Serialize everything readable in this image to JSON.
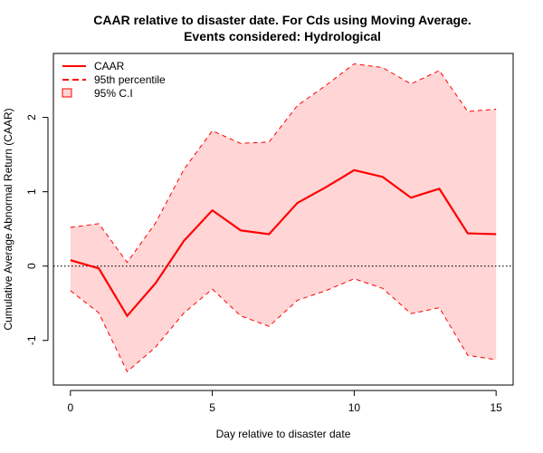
{
  "chart_data": {
    "type": "line",
    "title": "CAAR relative to disaster date. For Cds using Moving Average.",
    "subtitle": "Events considered: Hydrological",
    "xlabel": "Day relative to disaster date",
    "ylabel": "Cumulative Average Abnormal Return (CAAR)",
    "xlim": [
      -0.6,
      15.6
    ],
    "ylim": [
      -1.6,
      2.86
    ],
    "x_ticks": [
      0,
      5,
      10,
      15
    ],
    "x_tick_labels": [
      "0",
      "5",
      "10",
      "15"
    ],
    "y_ticks": [
      -1,
      0,
      1,
      2
    ],
    "y_tick_labels": [
      "-1",
      "0",
      "1",
      "2"
    ],
    "reference_line": {
      "y": 0,
      "style": "dotted"
    },
    "legend_placement": "top-left",
    "x": [
      0,
      1,
      2,
      3,
      4,
      5,
      6,
      7,
      8,
      9,
      10,
      11,
      12,
      13,
      14,
      15
    ],
    "series": [
      {
        "name": "CAAR",
        "style": "solid",
        "color": "#ff0000",
        "values": [
          0.08,
          -0.03,
          -0.67,
          -0.23,
          0.34,
          0.75,
          0.48,
          0.43,
          0.85,
          1.06,
          1.29,
          1.2,
          0.92,
          1.04,
          0.44,
          0.43
        ]
      },
      {
        "name": "95th percentile",
        "style": "dashed",
        "color": "#ff0000",
        "upper": [
          0.52,
          0.57,
          0.05,
          0.58,
          1.3,
          1.82,
          1.65,
          1.67,
          2.16,
          2.43,
          2.72,
          2.67,
          2.45,
          2.63,
          2.08,
          2.11
        ],
        "lower": [
          -0.33,
          -0.63,
          -1.42,
          -1.09,
          -0.63,
          -0.31,
          -0.67,
          -0.81,
          -0.46,
          -0.33,
          -0.17,
          -0.3,
          -0.64,
          -0.56,
          -1.2,
          -1.26
        ]
      },
      {
        "name": "95% C.I",
        "style": "fill",
        "color": "#ffd5d5"
      }
    ],
    "colors": {
      "line": "#ff0000",
      "band_fill": "#ffd5d5",
      "axis": "#000000"
    }
  }
}
